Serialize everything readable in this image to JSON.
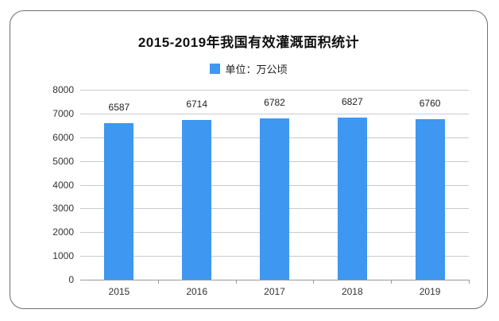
{
  "chart_title": "2015-2019年我国有效灌溉面积统计",
  "legend": {
    "label": "单位：万公顷"
  },
  "colors": {
    "bar": "#3E97F0",
    "gridline": "#c6cbd0",
    "axis": "#999999",
    "frame_border": "#6f6f6f"
  },
  "chart_data": {
    "type": "bar",
    "title": "2015-2019年我国有效灌溉面积统计",
    "categories": [
      "2015",
      "2016",
      "2017",
      "2018",
      "2019"
    ],
    "values": [
      6587,
      6714,
      6782,
      6827,
      6760
    ],
    "series_name": "单位：万公顷",
    "xlabel": "",
    "ylabel": "",
    "ylim": [
      0,
      8000
    ],
    "ytick_step": 1000,
    "yticks": [
      0,
      1000,
      2000,
      3000,
      4000,
      5000,
      6000,
      7000,
      8000
    ],
    "grid": true,
    "value_labels": true,
    "legend_position": "top-center",
    "bar_color": "#3E97F0"
  }
}
